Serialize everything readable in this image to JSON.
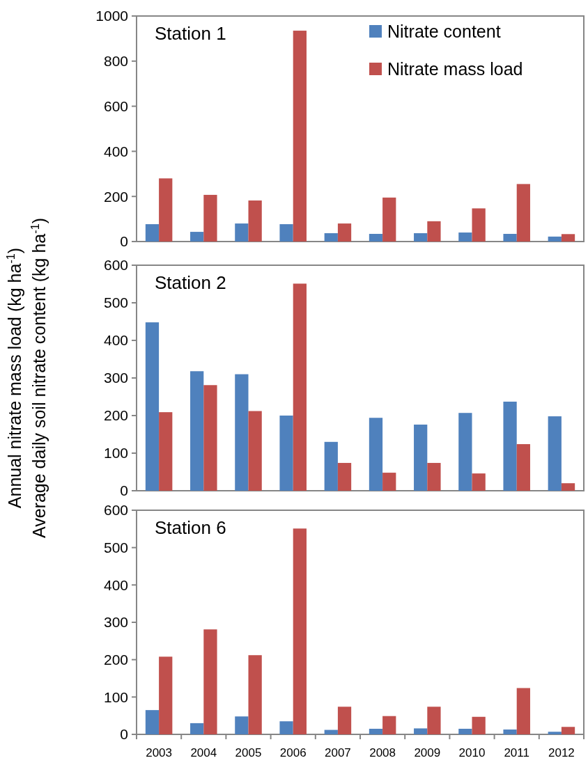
{
  "chart_data": [
    {
      "type": "bar",
      "title": "Station 1",
      "categories": [
        "2003",
        "2004",
        "2005",
        "2006",
        "2007",
        "2008",
        "2009",
        "2010",
        "2011",
        "2012"
      ],
      "series": [
        {
          "name": "Nitrate content",
          "color": "#4f81bd",
          "values": [
            77,
            43,
            80,
            77,
            37,
            34,
            37,
            40,
            34,
            22
          ]
        },
        {
          "name": "Nitrate mass load",
          "color": "#c0504d",
          "values": [
            280,
            207,
            182,
            935,
            80,
            195,
            90,
            147,
            255,
            33
          ]
        }
      ],
      "ylim": [
        0,
        1000
      ],
      "yticks": [
        0,
        200,
        400,
        600,
        800,
        1000
      ],
      "legend": "top right",
      "tick_labels": "y",
      "grid": false
    },
    {
      "type": "bar",
      "title": "Station 2",
      "ylabel": "Annual nitrate mass load (kg ha$^{-1}$)\nAverage daily soil nitrate content (kg ha$^{-1}$)",
      "categories": [
        "2003",
        "2004",
        "2005",
        "2006",
        "2007",
        "2008",
        "2009",
        "2010",
        "2011",
        "2012"
      ],
      "series": [
        {
          "color": "#4f81bd",
          "values": [
            448,
            318,
            310,
            200,
            130,
            194,
            176,
            207,
            237,
            198
          ]
        },
        {
          "color": "#c0504d",
          "values": [
            209,
            281,
            212,
            551,
            74,
            48,
            74,
            46,
            124,
            20
          ]
        }
      ],
      "ylim": [
        0,
        600
      ],
      "yticks": [
        0,
        100,
        200,
        300,
        400,
        500,
        600
      ],
      "legend": false,
      "tick_labels": "y",
      "grid": false
    },
    {
      "type": "bar",
      "title": "Station 6",
      "categories": [
        "2003",
        "2004",
        "2005",
        "2006",
        "2007",
        "2008",
        "2009",
        "2010",
        "2011",
        "2012"
      ],
      "series": [
        {
          "color": "#4f81bd",
          "values": [
            65,
            30,
            48,
            35,
            12,
            15,
            16,
            15,
            13,
            7
          ]
        },
        {
          "color": "#c0504d",
          "values": [
            208,
            281,
            212,
            551,
            74,
            49,
            74,
            47,
            124,
            20
          ]
        }
      ],
      "ylim": [
        0,
        600
      ],
      "yticks": [
        0,
        100,
        200,
        300,
        400,
        500,
        600
      ],
      "legend": false,
      "grid": false
    }
  ]
}
